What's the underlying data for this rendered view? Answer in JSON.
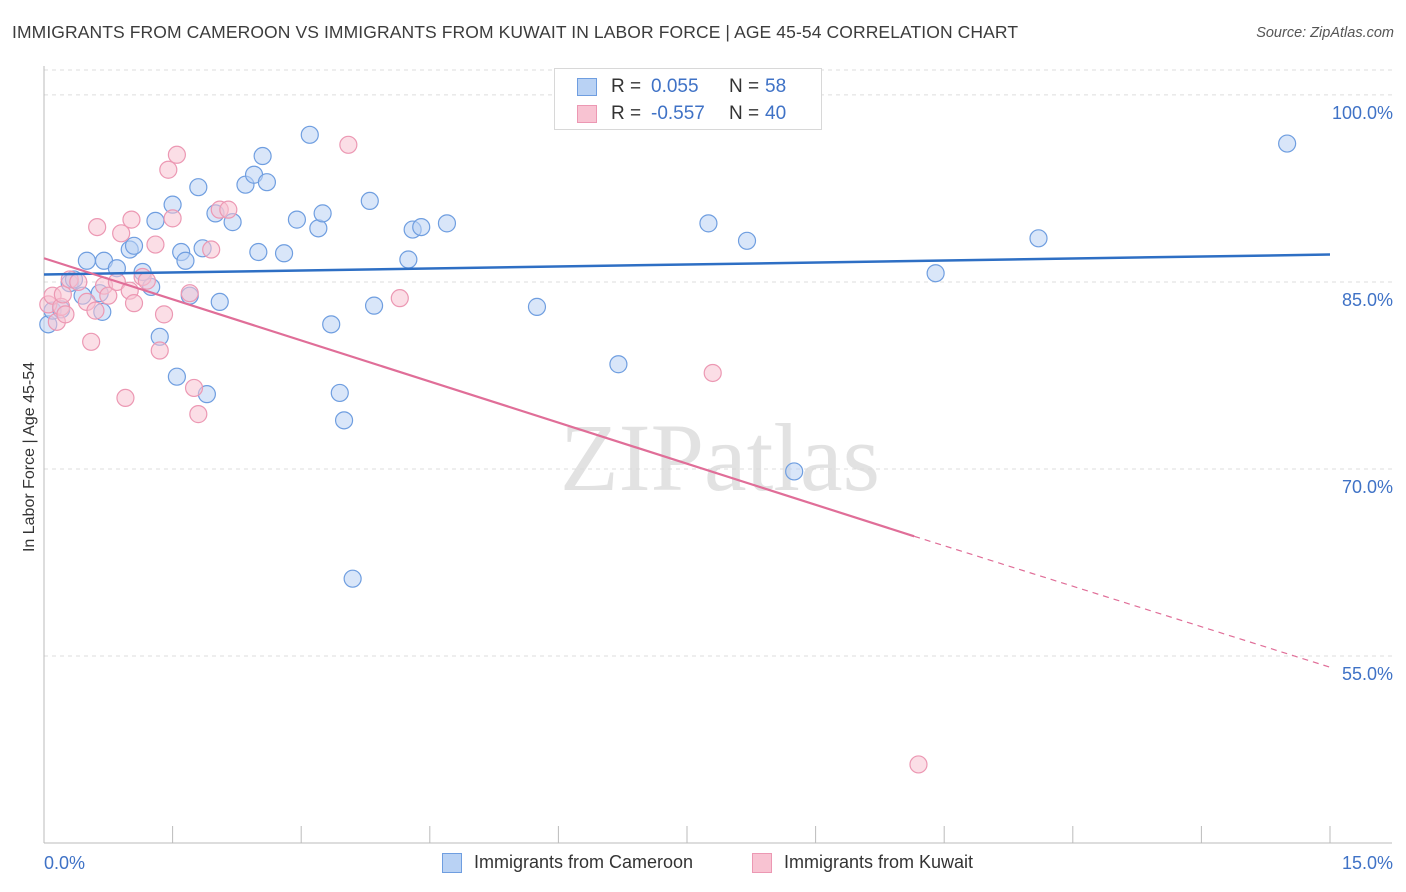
{
  "title": "IMMIGRANTS FROM CAMEROON VS IMMIGRANTS FROM KUWAIT IN LABOR FORCE | AGE 45-54 CORRELATION CHART",
  "source": "Source: ZipAtlas.com",
  "watermark": "ZIPatlas",
  "colors": {
    "cameroon_fill": "#b9d2f4",
    "cameroon_stroke": "#6f9ee0",
    "cameroon_line": "#2e6fc4",
    "kuwait_fill": "#f8c3d2",
    "kuwait_stroke": "#ec98b3",
    "kuwait_line": "#e06e98",
    "value_blue": "#3f72c6",
    "grid": "#dddddd"
  },
  "legend": {
    "rows": [
      {
        "r_label": "R =",
        "r_value": "0.055",
        "n_label": "N =",
        "n_value": "58"
      },
      {
        "r_label": "R =",
        "r_value": "-0.557",
        "n_label": "N =",
        "n_value": "40"
      }
    ]
  },
  "chart_data": {
    "type": "scatter",
    "xlabel": "",
    "ylabel": "In Labor Force | Age 45-54",
    "xlim": [
      0,
      15
    ],
    "ylim": [
      40,
      102
    ],
    "x_tick_labels": [
      "0.0%",
      "15.0%"
    ],
    "y_ticks": [
      55,
      70,
      85,
      100
    ],
    "y_tick_labels": [
      "55.0%",
      "70.0%",
      "85.0%",
      "100.0%"
    ],
    "grid": "horizontal dashed",
    "series": [
      {
        "name": "Immigrants from Cameroon",
        "trend": {
          "x0": 0,
          "y0": 85.6,
          "x1": 15,
          "y1": 87.2
        },
        "points": [
          [
            0.05,
            81.6
          ],
          [
            0.1,
            82.7
          ],
          [
            0.2,
            82.8
          ],
          [
            0.3,
            84.9
          ],
          [
            0.35,
            85.2
          ],
          [
            0.45,
            83.9
          ],
          [
            0.5,
            86.7
          ],
          [
            0.65,
            84.1
          ],
          [
            0.68,
            82.6
          ],
          [
            0.7,
            86.7
          ],
          [
            0.85,
            86.1
          ],
          [
            1.0,
            87.6
          ],
          [
            1.05,
            87.9
          ],
          [
            1.15,
            85.8
          ],
          [
            1.25,
            84.6
          ],
          [
            1.3,
            89.9
          ],
          [
            1.35,
            80.6
          ],
          [
            1.5,
            91.2
          ],
          [
            1.55,
            77.4
          ],
          [
            1.6,
            87.4
          ],
          [
            1.65,
            86.7
          ],
          [
            1.7,
            83.9
          ],
          [
            1.8,
            92.6
          ],
          [
            1.85,
            87.7
          ],
          [
            1.9,
            76.0
          ],
          [
            2.0,
            90.5
          ],
          [
            2.05,
            83.4
          ],
          [
            2.2,
            89.8
          ],
          [
            2.35,
            92.8
          ],
          [
            2.45,
            93.6
          ],
          [
            2.5,
            87.4
          ],
          [
            2.55,
            95.1
          ],
          [
            2.6,
            93.0
          ],
          [
            2.8,
            87.3
          ],
          [
            2.95,
            90.0
          ],
          [
            3.1,
            96.8
          ],
          [
            3.2,
            89.3
          ],
          [
            3.25,
            90.5
          ],
          [
            3.35,
            81.6
          ],
          [
            3.45,
            76.1
          ],
          [
            3.5,
            73.9
          ],
          [
            3.6,
            61.2
          ],
          [
            3.8,
            91.5
          ],
          [
            3.85,
            83.1
          ],
          [
            4.25,
            86.8
          ],
          [
            4.3,
            89.2
          ],
          [
            4.4,
            89.4
          ],
          [
            4.7,
            89.7
          ],
          [
            5.75,
            83.0
          ],
          [
            6.7,
            78.4
          ],
          [
            7.75,
            89.7
          ],
          [
            8.2,
            88.3
          ],
          [
            8.75,
            69.8
          ],
          [
            10.4,
            85.7
          ],
          [
            11.6,
            88.5
          ],
          [
            14.5,
            96.1
          ]
        ]
      },
      {
        "name": "Immigrants from Kuwait",
        "trend": {
          "x0": 0,
          "y0": 86.9,
          "x1": 10.15,
          "y1": 64.6
        },
        "trend_extension": {
          "x0": 10.15,
          "y0": 64.6,
          "x1": 15,
          "y1": 54.1
        },
        "points": [
          [
            0.05,
            83.2
          ],
          [
            0.1,
            83.9
          ],
          [
            0.15,
            81.8
          ],
          [
            0.2,
            83.0
          ],
          [
            0.22,
            84.0
          ],
          [
            0.25,
            82.4
          ],
          [
            0.3,
            85.2
          ],
          [
            0.4,
            85.0
          ],
          [
            0.5,
            83.4
          ],
          [
            0.55,
            80.2
          ],
          [
            0.6,
            82.7
          ],
          [
            0.62,
            89.4
          ],
          [
            0.7,
            84.7
          ],
          [
            0.75,
            83.9
          ],
          [
            0.85,
            85.0
          ],
          [
            0.9,
            88.9
          ],
          [
            0.95,
            75.7
          ],
          [
            1.0,
            84.3
          ],
          [
            1.02,
            90.0
          ],
          [
            1.05,
            83.3
          ],
          [
            1.15,
            85.4
          ],
          [
            1.2,
            85.1
          ],
          [
            1.3,
            88.0
          ],
          [
            1.35,
            79.5
          ],
          [
            1.4,
            82.4
          ],
          [
            1.45,
            94.0
          ],
          [
            1.5,
            90.1
          ],
          [
            1.55,
            95.2
          ],
          [
            1.7,
            84.1
          ],
          [
            1.75,
            76.5
          ],
          [
            1.8,
            74.4
          ],
          [
            1.95,
            87.6
          ],
          [
            2.05,
            90.8
          ],
          [
            2.15,
            90.8
          ],
          [
            3.55,
            96.0
          ],
          [
            4.15,
            83.7
          ],
          [
            7.8,
            77.7
          ],
          [
            10.2,
            46.3
          ]
        ]
      }
    ]
  }
}
